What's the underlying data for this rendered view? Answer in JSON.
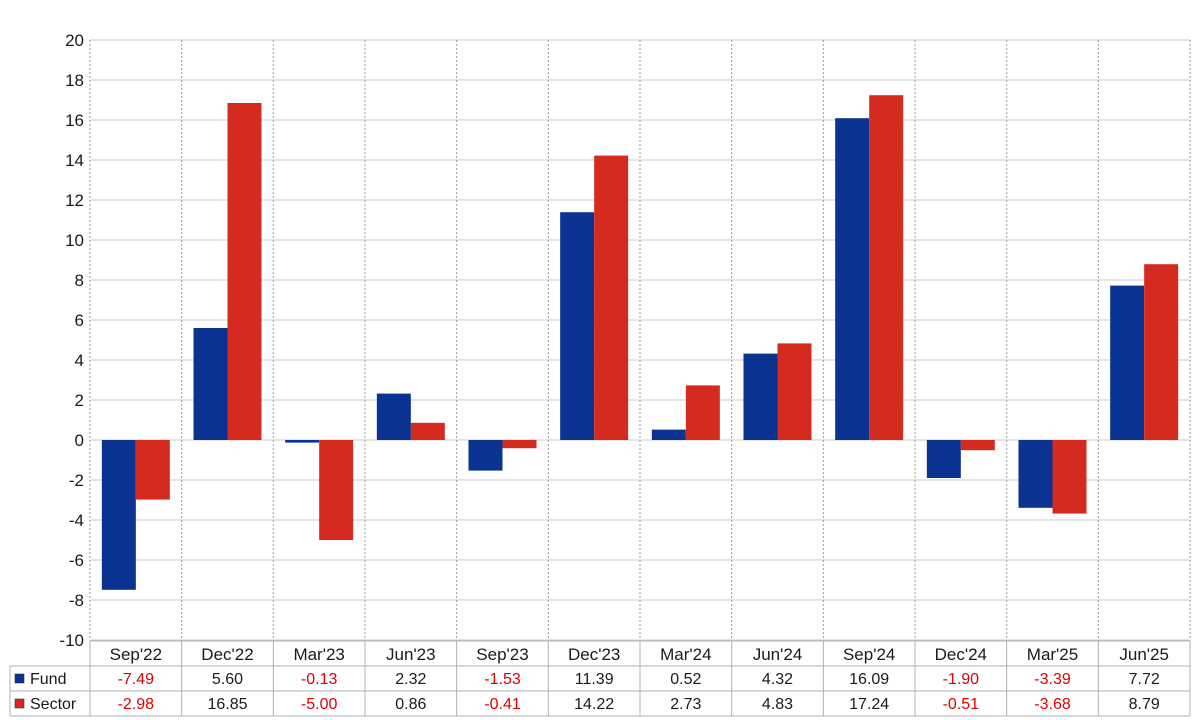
{
  "chart_data": {
    "type": "bar",
    "categories": [
      "Sep'22",
      "Dec'22",
      "Mar'23",
      "Jun'23",
      "Sep'23",
      "Dec'23",
      "Mar'24",
      "Jun'24",
      "Sep'24",
      "Dec'24",
      "Mar'25",
      "Jun'25"
    ],
    "series": [
      {
        "name": "Fund",
        "color": "#0a3291",
        "values": [
          -7.49,
          5.6,
          -0.13,
          2.32,
          -1.53,
          11.39,
          0.52,
          4.32,
          16.09,
          -1.9,
          -3.39,
          7.72
        ],
        "labels": [
          "-7.49",
          "5.60",
          "-0.13",
          "2.32",
          "-1.53",
          "11.39",
          "0.52",
          "4.32",
          "16.09",
          "-1.90",
          "-3.39",
          "7.72"
        ]
      },
      {
        "name": "Sector",
        "color": "#d42a20",
        "values": [
          -2.98,
          16.85,
          -5.0,
          0.86,
          -0.41,
          14.22,
          2.73,
          4.83,
          17.24,
          -0.51,
          -3.68,
          8.79
        ],
        "labels": [
          "-2.98",
          "16.85",
          "-5.00",
          "0.86",
          "-0.41",
          "14.22",
          "2.73",
          "4.83",
          "17.24",
          "-0.51",
          "-3.68",
          "8.79"
        ]
      }
    ],
    "ylim": [
      -10,
      20
    ],
    "yticks": [
      "20",
      "18",
      "16",
      "14",
      "12",
      "10",
      "8",
      "6",
      "4",
      "2",
      "0",
      "-2",
      "-4",
      "-6",
      "-8",
      "-10"
    ],
    "grid": true,
    "legend": "table-below",
    "negative_color": "#e00000"
  }
}
